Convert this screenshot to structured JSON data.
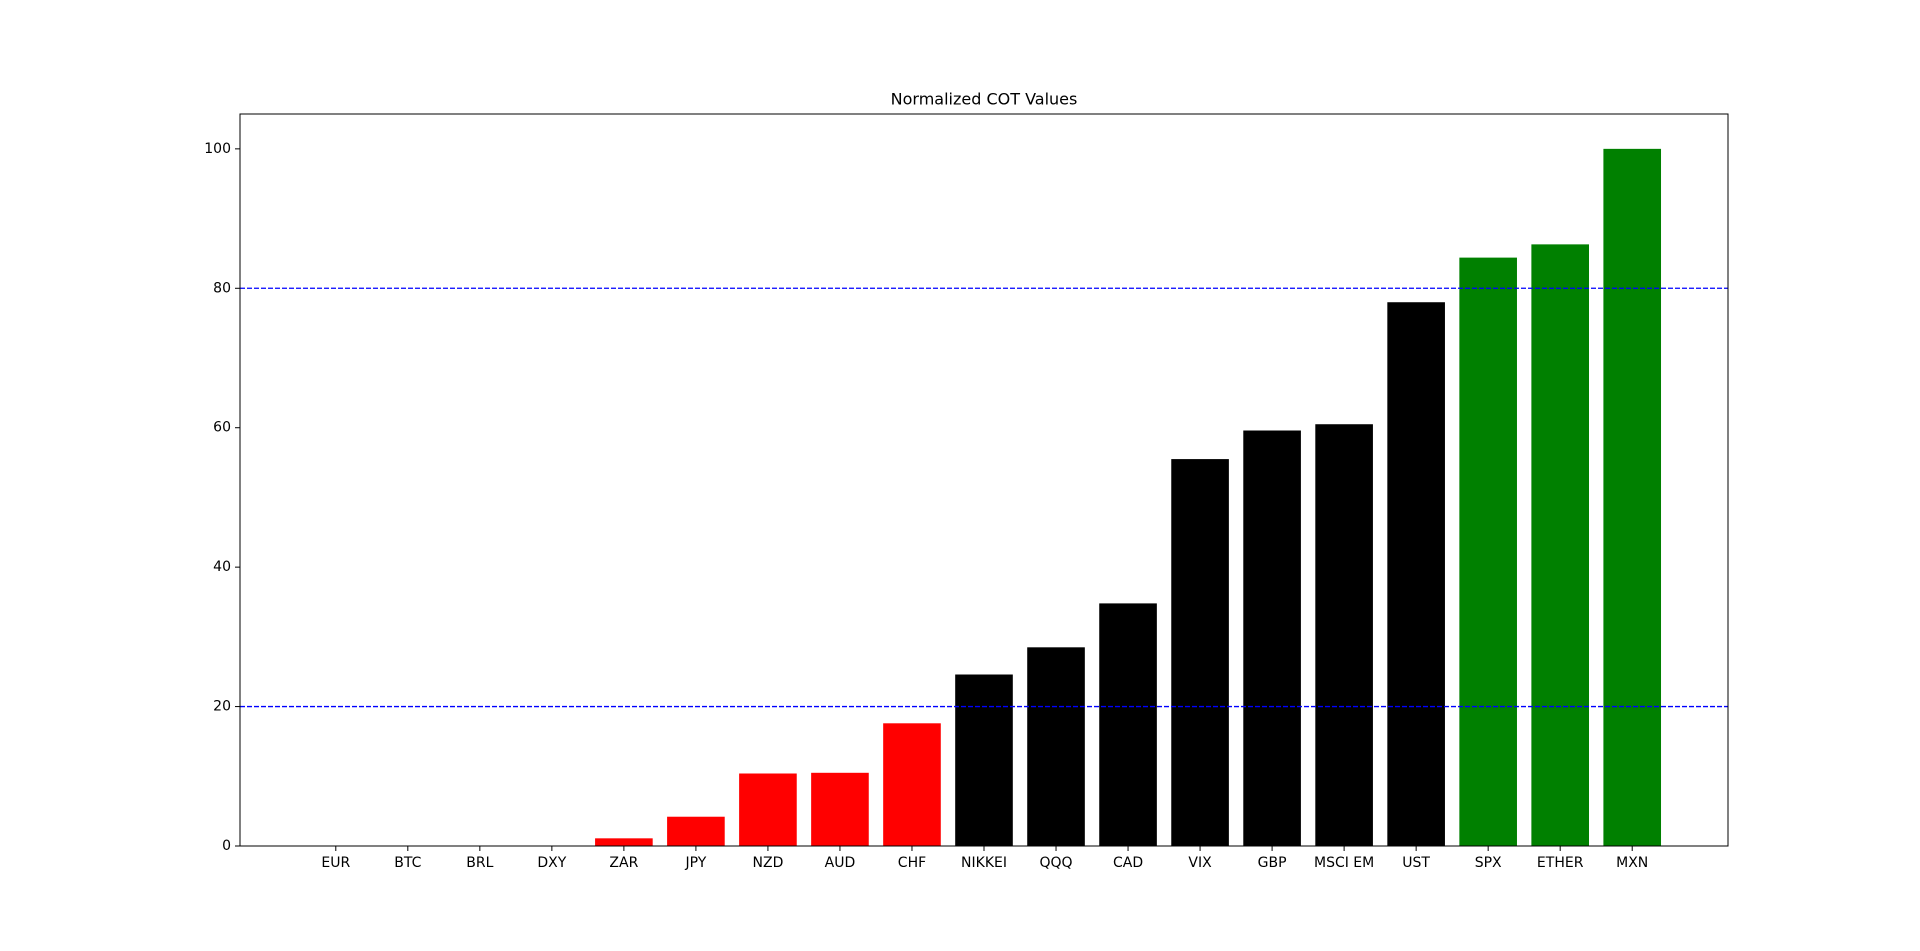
{
  "chart_data": {
    "type": "bar",
    "title": "Normalized COT Values",
    "categories": [
      "EUR",
      "BTC",
      "BRL",
      "DXY",
      "ZAR",
      "JPY",
      "NZD",
      "AUD",
      "CHF",
      "NIKKEI",
      "QQQ",
      "CAD",
      "VIX",
      "GBP",
      "MSCI EM",
      "UST",
      "SPX",
      "ETHER",
      "MXN"
    ],
    "values": [
      0,
      0,
      0,
      0,
      1.1,
      4.2,
      10.4,
      10.5,
      17.6,
      24.6,
      28.5,
      34.8,
      55.5,
      59.6,
      60.5,
      78.0,
      84.4,
      86.3,
      100
    ],
    "colors": [
      "#ff0000",
      "#ff0000",
      "#ff0000",
      "#ff0000",
      "#ff0000",
      "#ff0000",
      "#ff0000",
      "#ff0000",
      "#ff0000",
      "#000000",
      "#000000",
      "#000000",
      "#000000",
      "#000000",
      "#000000",
      "#000000",
      "#008000",
      "#008000",
      "#008000"
    ],
    "ylim": [
      0,
      105
    ],
    "yticks": [
      0,
      20,
      40,
      60,
      80,
      100
    ],
    "hlines": [
      20,
      80
    ],
    "hline_color": "#0000ff",
    "grid": false
  }
}
